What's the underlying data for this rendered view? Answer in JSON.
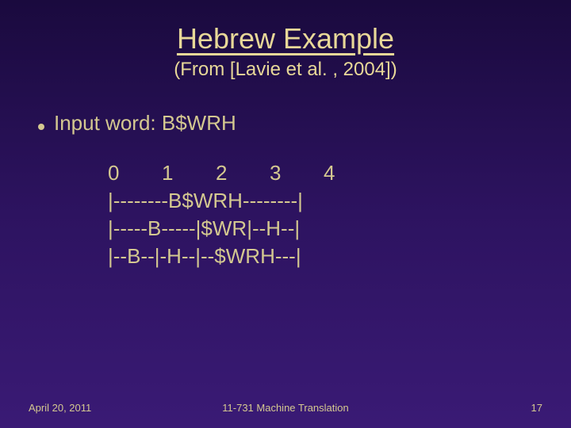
{
  "title": "Hebrew Example",
  "subtitle": "(From [Lavie et al. , 2004])",
  "bullet": {
    "label": "Input word:  B$WRH"
  },
  "diagram": {
    "indices": [
      "0",
      "1",
      "2",
      "3",
      "4"
    ],
    "lines": [
      "|--------B$WRH--------|",
      "|-----B-----|$WR|--H--|",
      "|--B--|-H--|--$WRH---|"
    ]
  },
  "footer": {
    "date": "April 20, 2011",
    "course": "11-731 Machine Translation",
    "page": "17"
  },
  "colors": {
    "bg_top": "#1a0a3e",
    "bg_bottom": "#3a1a75",
    "text": "#d4c890",
    "title": "#e8d898"
  }
}
